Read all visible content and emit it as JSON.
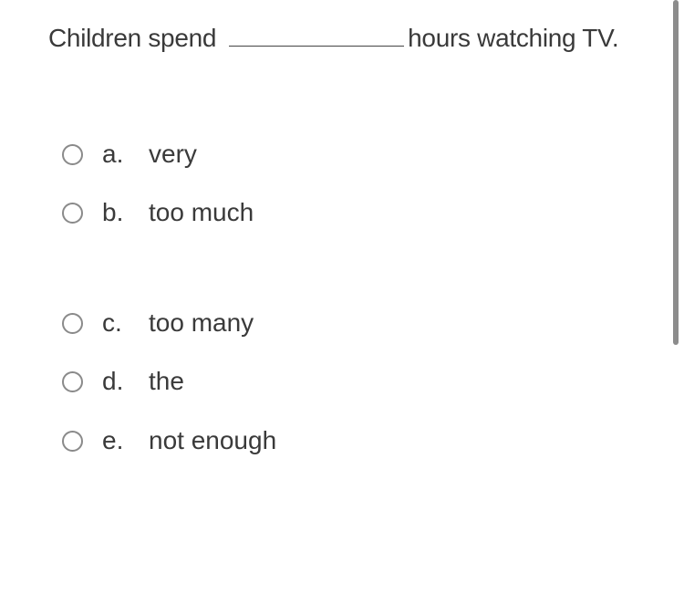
{
  "question": {
    "before": "Children spend",
    "after": "hours watching TV."
  },
  "options": [
    {
      "letter": "a.",
      "text": "very"
    },
    {
      "letter": "b.",
      "text": "too much"
    },
    {
      "letter": "c.",
      "text": "too many"
    },
    {
      "letter": "d.",
      "text": "the"
    },
    {
      "letter": "e.",
      "text": "not enough"
    }
  ]
}
